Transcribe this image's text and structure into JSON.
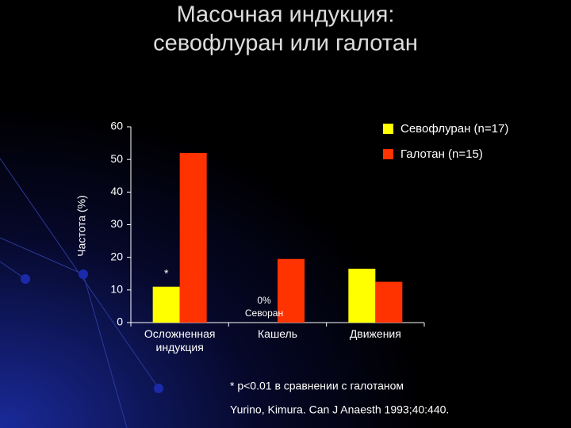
{
  "chart_data": {
    "type": "bar",
    "title": [
      "Масочная индукция:",
      "севофлуран или галотан"
    ],
    "y_label": "Частота (%)",
    "categories": [
      "Осложненная индукция",
      "Кашель",
      "Движения"
    ],
    "series": [
      {
        "name": "Севофлуран (n=17)",
        "color": "#ffff00",
        "values": [
          11,
          0,
          16.5
        ]
      },
      {
        "name": "Галотан (n=15)",
        "color": "#ff3300",
        "values": [
          52,
          19.5,
          12.5
        ]
      }
    ],
    "ylim": [
      0,
      60
    ],
    "yticks": [
      0,
      10,
      20,
      30,
      40,
      50,
      60
    ],
    "legend": "top-right",
    "annotations": {
      "star": "*",
      "zero": "0%",
      "zero_note": "Севоран"
    },
    "footnote": "* p<0.01 в сравнении с галотаном",
    "source": "Yurino, Kimura. Can J Anaesth 1993;40:440."
  }
}
